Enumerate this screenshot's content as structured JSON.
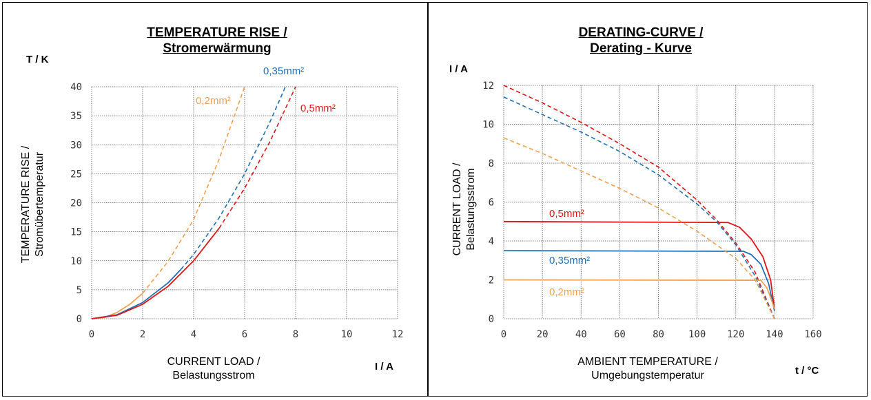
{
  "chart_data": [
    {
      "type": "line",
      "title_line1": "TEMPERATURE RISE /",
      "title_line2": "Stromerwärmung",
      "y_unit": "T / K",
      "x_unit": "I / A",
      "ylabel_line1": "TEMPERATURE RISE /",
      "ylabel_line2": "Stromübertemperatur",
      "xlabel_line1": "CURRENT LOAD /",
      "xlabel_line2": "Belastungsstrom",
      "xlim": [
        0,
        12
      ],
      "ylim": [
        0,
        40
      ],
      "xticks": [
        0,
        2,
        4,
        6,
        8,
        10,
        12
      ],
      "yticks": [
        0,
        5,
        10,
        15,
        20,
        25,
        30,
        35,
        40
      ],
      "grid": true,
      "series": [
        {
          "name": "0,2mm²",
          "color": "#f0a050",
          "solid": [
            [
              0,
              0
            ],
            [
              0.5,
              0.2
            ],
            [
              1,
              1.1
            ],
            [
              1.5,
              2.5
            ],
            [
              2,
              4.4
            ]
          ],
          "dashed": [
            [
              2,
              4.4
            ],
            [
              3,
              9.9
            ],
            [
              4,
              17.1
            ],
            [
              5,
              27.5
            ],
            [
              6,
              40
            ]
          ]
        },
        {
          "name": "0,35mm²",
          "color": "#1f6fb4",
          "solid": [
            [
              0,
              0
            ],
            [
              1,
              0.7
            ],
            [
              2,
              2.8
            ],
            [
              3,
              6.2
            ],
            [
              3.5,
              8.5
            ]
          ],
          "dashed": [
            [
              3.5,
              8.5
            ],
            [
              4,
              11.1
            ],
            [
              5,
              17.4
            ],
            [
              6,
              25
            ],
            [
              7,
              34
            ],
            [
              7.6,
              40
            ]
          ]
        },
        {
          "name": "0,5mm²",
          "color": "#e01414",
          "solid": [
            [
              0,
              0
            ],
            [
              1,
              0.6
            ],
            [
              2,
              2.5
            ],
            [
              3,
              5.6
            ],
            [
              4,
              10
            ],
            [
              5,
              15.6
            ]
          ],
          "dashed": [
            [
              5,
              15.6
            ],
            [
              6,
              22.5
            ],
            [
              7,
              30.6
            ],
            [
              8,
              40
            ]
          ]
        }
      ]
    },
    {
      "type": "line",
      "title_line1": "DERATING-CURVE /",
      "title_line2": "Derating - Kurve",
      "y_unit": "I / A",
      "x_unit": "t / °C",
      "ylabel_line1": "CURRENT LOAD /",
      "ylabel_line2": "Belastungsstrom",
      "xlabel_line1": "AMBIENT TEMPERATURE /",
      "xlabel_line2": "Umgebungstemperatur",
      "xlim": [
        0,
        160
      ],
      "ylim": [
        0,
        12
      ],
      "xticks": [
        0,
        20,
        40,
        60,
        80,
        100,
        120,
        140,
        160
      ],
      "yticks": [
        0,
        2,
        4,
        6,
        8,
        10,
        12
      ],
      "grid": true,
      "series": [
        {
          "name": "0,5mm²",
          "color": "#e01414",
          "solid": [
            [
              0,
              5
            ],
            [
              116,
              4.95
            ],
            [
              122,
              4.7
            ],
            [
              128,
              4.1
            ],
            [
              134,
              3.2
            ],
            [
              138,
              2
            ],
            [
              140,
              0.5
            ]
          ],
          "dashed": [
            [
              0,
              12
            ],
            [
              20,
              11.1
            ],
            [
              40,
              10.1
            ],
            [
              60,
              9
            ],
            [
              80,
              7.8
            ],
            [
              100,
              6.1
            ],
            [
              110,
              5.1
            ],
            [
              120,
              3.9
            ],
            [
              130,
              2.4
            ],
            [
              140,
              0
            ]
          ]
        },
        {
          "name": "0,35mm²",
          "color": "#1f6fb4",
          "solid": [
            [
              0,
              3.5
            ],
            [
              124,
              3.47
            ],
            [
              128,
              3.3
            ],
            [
              133,
              2.8
            ],
            [
              137,
              1.8
            ],
            [
              140,
              0.4
            ]
          ],
          "dashed": [
            [
              0,
              11.4
            ],
            [
              20,
              10.5
            ],
            [
              40,
              9.6
            ],
            [
              60,
              8.6
            ],
            [
              80,
              7.4
            ],
            [
              100,
              5.9
            ],
            [
              110,
              5
            ],
            [
              120,
              3.8
            ],
            [
              130,
              2.2
            ],
            [
              140,
              0
            ]
          ]
        },
        {
          "name": "0,2mm²",
          "color": "#f0a050",
          "solid": [
            [
              0,
              2
            ],
            [
              133,
              1.98
            ],
            [
              136,
              1.6
            ],
            [
              138,
              1.1
            ],
            [
              140,
              0.5
            ]
          ],
          "dashed": [
            [
              0,
              9.3
            ],
            [
              20,
              8.5
            ],
            [
              40,
              7.6
            ],
            [
              60,
              6.7
            ],
            [
              80,
              5.7
            ],
            [
              100,
              4.5
            ],
            [
              120,
              3.1
            ],
            [
              130,
              2
            ],
            [
              140,
              0
            ]
          ]
        }
      ]
    }
  ]
}
